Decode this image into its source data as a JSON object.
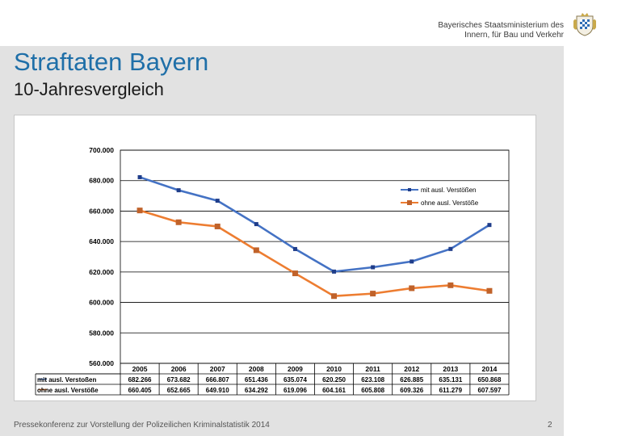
{
  "header": {
    "ministry_line1": "Bayerisches Staatsministerium des",
    "ministry_line2": "Innern, für Bau und Verkehr"
  },
  "slide": {
    "title": "Straftaten Bayern",
    "subtitle": "10-Jahresvergleich"
  },
  "footer": {
    "text": "Pressekonferenz zur Vorstellung der Polizeilichen Kriminalstatistik 2014",
    "page_number": "2"
  },
  "colors": {
    "title": "#1f6fa8",
    "series_blue": "#4472c4",
    "series_blue_marker": "#1f3d8a",
    "series_orange": "#ed7d31",
    "series_orange_marker": "#c0622a"
  },
  "chart_data": {
    "type": "line",
    "title": "",
    "xlabel": "",
    "ylabel": "",
    "ylim": [
      560000,
      700000
    ],
    "ytick_labels": [
      "700.000",
      "680.000",
      "660.000",
      "640.000",
      "620.000",
      "600.000",
      "580.000",
      "560.000"
    ],
    "ytick_values": [
      700000,
      680000,
      660000,
      640000,
      620000,
      600000,
      580000,
      560000
    ],
    "categories": [
      "2005",
      "2006",
      "2007",
      "2008",
      "2009",
      "2010",
      "2011",
      "2012",
      "2013",
      "2014"
    ],
    "legend_position": "top-right",
    "grid": true,
    "series": [
      {
        "name": "mit ausl. Verstößen",
        "table_label": "mit ausl. Verstoßen",
        "values": [
          682266,
          673682,
          666807,
          651436,
          635074,
          620250,
          623108,
          626885,
          635131,
          650868
        ],
        "value_labels": [
          "682.266",
          "673.682",
          "666.807",
          "651.436",
          "635.074",
          "620.250",
          "623.108",
          "626.885",
          "635.131",
          "650.868"
        ]
      },
      {
        "name": "ohne ausl. Verstöße",
        "table_label": "ohne ausl. Verstöße",
        "values": [
          660405,
          652665,
          649910,
          634292,
          619096,
          604161,
          605808,
          609326,
          611279,
          607597
        ],
        "value_labels": [
          "660.405",
          "652.665",
          "649.910",
          "634.292",
          "619.096",
          "604.161",
          "605.808",
          "609.326",
          "611.279",
          "607.597"
        ]
      }
    ]
  }
}
